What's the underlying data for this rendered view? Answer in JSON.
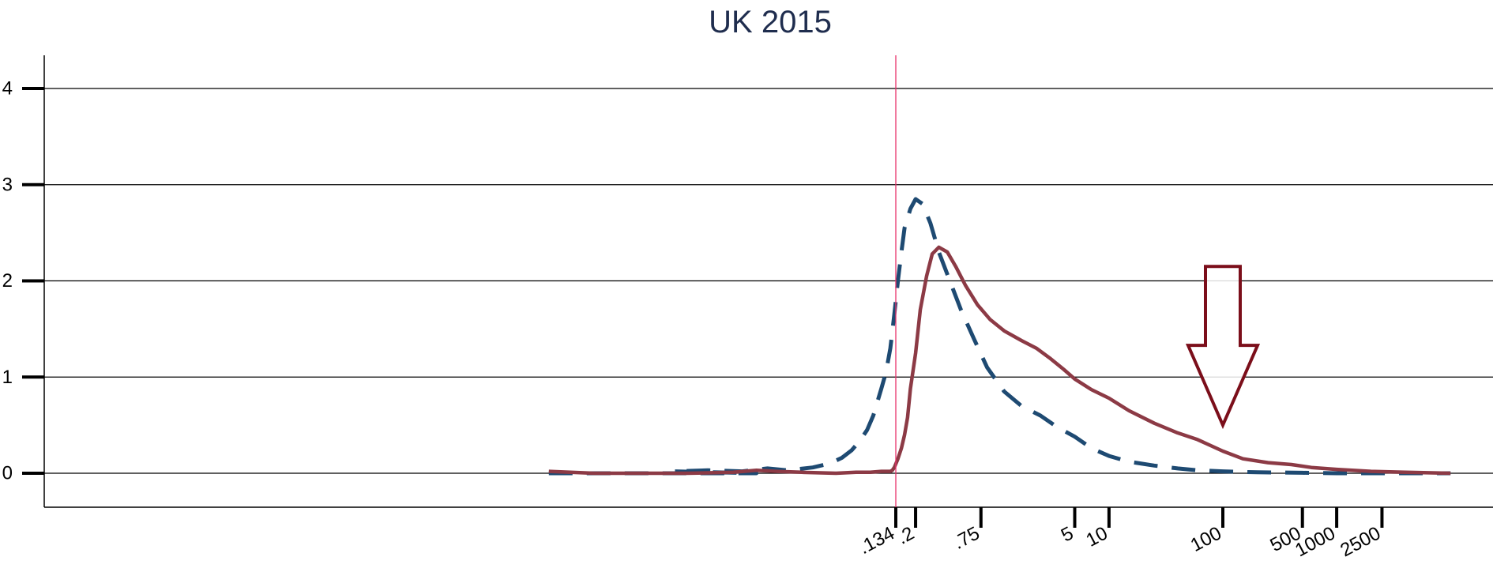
{
  "chart_data": {
    "type": "line",
    "title": "UK 2015",
    "xlabel": "",
    "ylabel": "",
    "x_scale": "log",
    "xlim": [
      6e-05,
      15000
    ],
    "ylim": [
      -0.35,
      4.35
    ],
    "grid": true,
    "y_ticks": [
      0,
      1,
      2,
      3,
      4
    ],
    "x_ticks": [
      {
        "value": 0.134,
        "label": ".134"
      },
      {
        "value": 0.2,
        "label": ".2"
      },
      {
        "value": 0.75,
        "label": ".75"
      },
      {
        "value": 5,
        "label": "5"
      },
      {
        "value": 10,
        "label": "10"
      },
      {
        "value": 100,
        "label": "100"
      },
      {
        "value": 500,
        "label": "500"
      },
      {
        "value": 1000,
        "label": "1000"
      },
      {
        "value": 2500,
        "label": "2500"
      }
    ],
    "reference_line": {
      "x": 0.134,
      "color": "#e8336b"
    },
    "arrow": {
      "x": 100,
      "y_top": 2.15,
      "y_tip": 0.5,
      "color": "#7b0e1a"
    },
    "series": [
      {
        "style": "dashed",
        "color": "#1e4a72",
        "points": [
          [
            0.00012,
            0
          ],
          [
            0.0003,
            0
          ],
          [
            0.0008,
            0
          ],
          [
            0.002,
            0
          ],
          [
            0.004,
            0
          ],
          [
            0.008,
            0
          ],
          [
            0.0015,
            0.02
          ],
          [
            0.003,
            0.03
          ],
          [
            0.006,
            0.02
          ],
          [
            0.01,
            0.05
          ],
          [
            0.015,
            0.03
          ],
          [
            0.025,
            0.06
          ],
          [
            0.035,
            0.1
          ],
          [
            0.045,
            0.16
          ],
          [
            0.055,
            0.24
          ],
          [
            0.065,
            0.34
          ],
          [
            0.075,
            0.45
          ],
          [
            0.085,
            0.6
          ],
          [
            0.1,
            0.88
          ],
          [
            0.11,
            1.05
          ],
          [
            0.12,
            1.3
          ],
          [
            0.13,
            1.65
          ],
          [
            0.14,
            2.0
          ],
          [
            0.15,
            2.3
          ],
          [
            0.16,
            2.55
          ],
          [
            0.18,
            2.75
          ],
          [
            0.2,
            2.85
          ],
          [
            0.23,
            2.8
          ],
          [
            0.27,
            2.6
          ],
          [
            0.32,
            2.3
          ],
          [
            0.4,
            2.0
          ],
          [
            0.5,
            1.7
          ],
          [
            0.65,
            1.4
          ],
          [
            0.85,
            1.1
          ],
          [
            1.2,
            0.85
          ],
          [
            1.7,
            0.7
          ],
          [
            2.5,
            0.6
          ],
          [
            3.5,
            0.48
          ],
          [
            5,
            0.38
          ],
          [
            7,
            0.26
          ],
          [
            10,
            0.18
          ],
          [
            15,
            0.12
          ],
          [
            25,
            0.08
          ],
          [
            40,
            0.05
          ],
          [
            60,
            0.03
          ],
          [
            100,
            0.02
          ],
          [
            200,
            0.01
          ],
          [
            500,
            0.005
          ],
          [
            1000,
            0
          ],
          [
            3000,
            0
          ],
          [
            10000,
            0
          ]
        ]
      },
      {
        "style": "solid",
        "color": "#8c3a45",
        "points": [
          [
            0.00012,
            0.02
          ],
          [
            0.0003,
            0
          ],
          [
            0.0008,
            0
          ],
          [
            0.002,
            0
          ],
          [
            0.005,
            0.01
          ],
          [
            0.008,
            0.03
          ],
          [
            0.012,
            0.02
          ],
          [
            0.02,
            0.01
          ],
          [
            0.04,
            0
          ],
          [
            0.06,
            0.01
          ],
          [
            0.08,
            0.01
          ],
          [
            0.1,
            0.02
          ],
          [
            0.12,
            0.02
          ],
          [
            0.125,
            0.03
          ],
          [
            0.13,
            0.06
          ],
          [
            0.14,
            0.15
          ],
          [
            0.15,
            0.26
          ],
          [
            0.16,
            0.4
          ],
          [
            0.17,
            0.58
          ],
          [
            0.18,
            0.88
          ],
          [
            0.2,
            1.25
          ],
          [
            0.22,
            1.7
          ],
          [
            0.25,
            2.05
          ],
          [
            0.28,
            2.28
          ],
          [
            0.32,
            2.35
          ],
          [
            0.38,
            2.3
          ],
          [
            0.45,
            2.15
          ],
          [
            0.55,
            1.95
          ],
          [
            0.7,
            1.75
          ],
          [
            0.9,
            1.6
          ],
          [
            1.2,
            1.48
          ],
          [
            1.7,
            1.38
          ],
          [
            2.3,
            1.3
          ],
          [
            3,
            1.2
          ],
          [
            4,
            1.08
          ],
          [
            5,
            0.98
          ],
          [
            7,
            0.87
          ],
          [
            10,
            0.78
          ],
          [
            15,
            0.65
          ],
          [
            25,
            0.52
          ],
          [
            40,
            0.42
          ],
          [
            60,
            0.35
          ],
          [
            100,
            0.23
          ],
          [
            150,
            0.15
          ],
          [
            250,
            0.11
          ],
          [
            400,
            0.09
          ],
          [
            600,
            0.06
          ],
          [
            1000,
            0.04
          ],
          [
            2000,
            0.02
          ],
          [
            4000,
            0.01
          ],
          [
            10000,
            0
          ]
        ]
      }
    ]
  }
}
